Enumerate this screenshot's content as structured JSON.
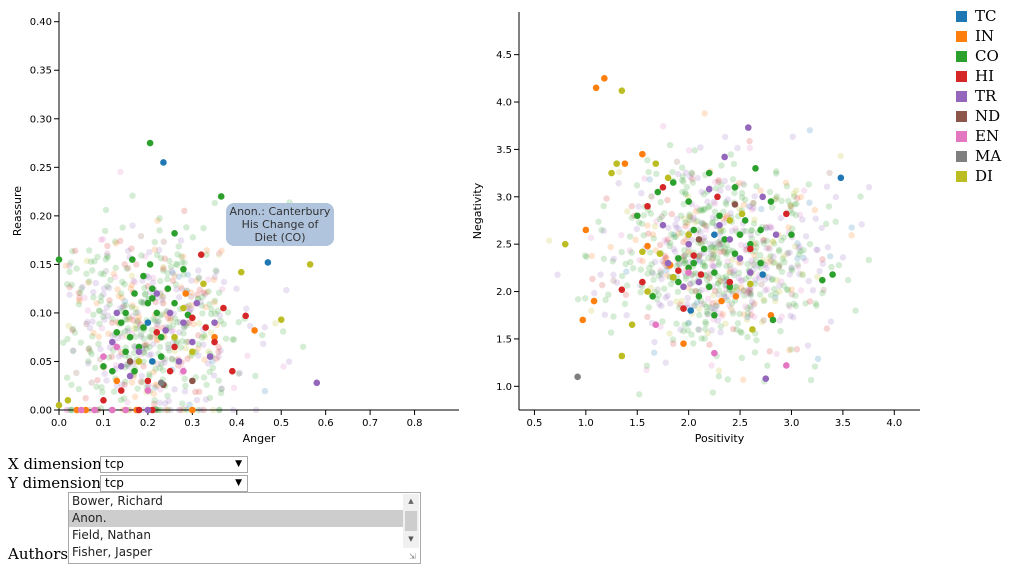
{
  "charts": {
    "left": {
      "xlabel": "Anger",
      "ylabel": "Reassure",
      "xlim": [
        0,
        0.9
      ],
      "ylim": [
        0,
        0.41
      ],
      "xticks": [
        "0.0",
        "0.1",
        "0.2",
        "0.3",
        "0.4",
        "0.5",
        "0.6",
        "0.7",
        "0.8"
      ],
      "xtick_values": [
        0,
        0.1,
        0.2,
        0.3,
        0.4,
        0.5,
        0.6,
        0.7,
        0.8
      ],
      "yticks": [
        "0.00",
        "0.05",
        "0.10",
        "0.15",
        "0.20",
        "0.25",
        "0.30",
        "0.35",
        "0.40"
      ],
      "ytick_values": [
        0,
        0.05,
        0.1,
        0.15,
        0.2,
        0.25,
        0.3,
        0.35,
        0.4
      ]
    },
    "right": {
      "xlabel": "Positivity",
      "ylabel": "Negativity",
      "xlim": [
        0.35,
        4.25
      ],
      "ylim": [
        0.75,
        4.95
      ],
      "xticks": [
        "0.5",
        "1.0",
        "1.5",
        "2.0",
        "2.5",
        "3.0",
        "3.5",
        "4.0"
      ],
      "xtick_values": [
        0.5,
        1,
        1.5,
        2,
        2.5,
        3,
        3.5,
        4
      ],
      "yticks": [
        "1.0",
        "1.5",
        "2.0",
        "2.5",
        "3.0",
        "3.5",
        "4.0",
        "4.5"
      ],
      "ytick_values": [
        1,
        1.5,
        2,
        2.5,
        3,
        3.5,
        4,
        4.5
      ]
    }
  },
  "chart_data": [
    {
      "type": "scatter",
      "xlabel": "Anger",
      "ylabel": "Reassure",
      "xlim": [
        0,
        0.9
      ],
      "ylim": [
        0,
        0.41
      ],
      "series": [
        {
          "name": "TC",
          "values": [
            [
              0.235,
              0.255
            ],
            [
              0.47,
              0.152
            ],
            [
              0.21,
              0.05
            ],
            [
              0.2,
              0.09
            ]
          ]
        },
        {
          "name": "IN",
          "values": [
            [
              0.44,
              0.082
            ],
            [
              0.35,
              0.075
            ],
            [
              0.13,
              0.03
            ],
            [
              0.175,
              0.0
            ],
            [
              0.04,
              0.0
            ],
            [
              0.3,
              0.0
            ],
            [
              0.285,
              0.12
            ],
            [
              0.06,
              0.0
            ]
          ]
        },
        {
          "name": "CO",
          "values": [
            [
              0.205,
              0.275
            ],
            [
              0.365,
              0.22
            ],
            [
              0.26,
              0.182
            ],
            [
              0.0,
              0.155
            ],
            [
              0.165,
              0.155
            ],
            [
              0.19,
              0.138
            ],
            [
              0.21,
              0.115
            ],
            [
              0.2,
              0.11
            ],
            [
              0.17,
              0.12
            ],
            [
              0.14,
              0.09
            ],
            [
              0.22,
              0.1
            ],
            [
              0.23,
              0.075
            ],
            [
              0.18,
              0.065
            ],
            [
              0.15,
              0.06
            ],
            [
              0.1,
              0.045
            ],
            [
              0.12,
              0.04
            ],
            [
              0.26,
              0.11
            ],
            [
              0.19,
              0.085
            ],
            [
              0.16,
              0.075
            ],
            [
              0.245,
              0.125
            ],
            [
              0.205,
              0.15
            ],
            [
              0.29,
              0.098
            ],
            [
              0.17,
              0.04
            ],
            [
              0.13,
              0.08
            ],
            [
              0.23,
              0.055
            ],
            [
              0.28,
              0.145
            ],
            [
              0.15,
              0.1
            ],
            [
              0.21,
              0.125
            ]
          ]
        },
        {
          "name": "HI",
          "values": [
            [
              0.32,
              0.16
            ],
            [
              0.37,
              0.105
            ],
            [
              0.42,
              0.097
            ],
            [
              0.33,
              0.085
            ],
            [
              0.35,
              0.07
            ],
            [
              0.26,
              0.065
            ],
            [
              0.2,
              0.03
            ],
            [
              0.14,
              0.02
            ],
            [
              0.39,
              0.04
            ],
            [
              0.18,
              0.0
            ],
            [
              0.21,
              0.0
            ],
            [
              0.22,
              0.08
            ],
            [
              0.3,
              0.095
            ],
            [
              0.25,
              0.04
            ],
            [
              0.1,
              0.01
            ]
          ]
        },
        {
          "name": "TR",
          "values": [
            [
              0.22,
              0.12
            ],
            [
              0.28,
              0.09
            ],
            [
              0.3,
              0.07
            ],
            [
              0.18,
              0.06
            ],
            [
              0.12,
              0.07
            ],
            [
              0.25,
              0.1
            ],
            [
              0.16,
              0.035
            ],
            [
              0.34,
              0.055
            ],
            [
              0.58,
              0.028
            ],
            [
              0.27,
              0.05
            ],
            [
              0.31,
              0.11
            ],
            [
              0.2,
              0.0
            ],
            [
              0.13,
              0.1
            ],
            [
              0.24,
              0.082
            ],
            [
              0.35,
              0.09
            ],
            [
              0.14,
              0.045
            ]
          ]
        },
        {
          "name": "ND",
          "values": [
            [
              0.235,
              0.026
            ],
            [
              0.16,
              0.05
            ],
            [
              0.3,
              0.03
            ]
          ]
        },
        {
          "name": "EN",
          "values": [
            [
              0.1,
              0.055
            ],
            [
              0.2,
              0.02
            ],
            [
              0.15,
              0.0
            ],
            [
              0.12,
              0.0
            ],
            [
              0.08,
              0.0
            ],
            [
              0.28,
              0.04
            ],
            [
              0.05,
              0.0
            ],
            [
              0.13,
              0.065
            ]
          ]
        },
        {
          "name": "MA",
          "values": [
            [
              0.23,
              0.028
            ]
          ]
        },
        {
          "name": "DI",
          "values": [
            [
              0.41,
              0.142
            ],
            [
              0.565,
              0.15
            ],
            [
              0.325,
              0.13
            ],
            [
              0.5,
              0.093
            ],
            [
              0.28,
              0.105
            ],
            [
              0.0,
              0.005
            ],
            [
              0.3,
              0.06
            ],
            [
              0.18,
              0.05
            ],
            [
              0.02,
              0.01
            ],
            [
              0.26,
              0.075
            ]
          ]
        }
      ]
    },
    {
      "type": "scatter",
      "xlabel": "Positivity",
      "ylabel": "Negativity",
      "xlim": [
        0.35,
        4.25
      ],
      "ylim": [
        0.75,
        4.95
      ],
      "series": [
        {
          "name": "TC",
          "values": [
            [
              3.48,
              3.2
            ],
            [
              2.72,
              2.18
            ],
            [
              2.02,
              1.8
            ],
            [
              2.25,
              2.6
            ]
          ]
        },
        {
          "name": "IN",
          "values": [
            [
              1.18,
              4.25
            ],
            [
              1.1,
              4.15
            ],
            [
              1.55,
              3.45
            ],
            [
              1.38,
              3.35
            ],
            [
              1.0,
              2.65
            ],
            [
              0.97,
              1.7
            ],
            [
              1.08,
              1.9
            ],
            [
              2.46,
              1.95
            ],
            [
              1.95,
              1.45
            ],
            [
              1.82,
              2.28
            ],
            [
              2.8,
              1.75
            ],
            [
              1.6,
              2.48
            ],
            [
              2.32,
              1.9
            ]
          ]
        },
        {
          "name": "CO",
          "values": [
            [
              2.2,
              3.25
            ],
            [
              2.65,
              3.3
            ],
            [
              1.85,
              3.15
            ],
            [
              2.45,
              3.1
            ],
            [
              2.0,
              2.95
            ],
            [
              2.8,
              2.95
            ],
            [
              1.7,
              3.05
            ],
            [
              2.3,
              2.8
            ],
            [
              2.55,
              2.75
            ],
            [
              2.05,
              2.65
            ],
            [
              2.35,
              2.55
            ],
            [
              2.6,
              2.5
            ],
            [
              2.15,
              2.45
            ],
            [
              2.45,
              2.4
            ],
            [
              2.05,
              2.3
            ],
            [
              2.7,
              2.3
            ],
            [
              2.25,
              2.2
            ],
            [
              3.3,
              2.12
            ],
            [
              2.4,
              2.05
            ],
            [
              1.9,
              2.1
            ],
            [
              2.1,
              1.95
            ],
            [
              2.82,
              1.7
            ],
            [
              2.25,
              1.75
            ],
            [
              3.0,
              2.6
            ],
            [
              1.5,
              2.8
            ],
            [
              2.0,
              2.25
            ],
            [
              2.5,
              2.6
            ],
            [
              3.4,
              2.18
            ],
            [
              1.65,
              1.95
            ],
            [
              2.2,
              2.05
            ],
            [
              1.9,
              2.35
            ],
            [
              2.7,
              2.65
            ]
          ]
        },
        {
          "name": "HI",
          "values": [
            [
              1.75,
              3.1
            ],
            [
              2.28,
              3.0
            ],
            [
              2.95,
              2.82
            ],
            [
              1.6,
              2.9
            ],
            [
              2.05,
              2.38
            ],
            [
              2.12,
              2.18
            ],
            [
              1.9,
              2.22
            ],
            [
              1.55,
              2.1
            ],
            [
              1.35,
              2.02
            ],
            [
              1.95,
              1.82
            ],
            [
              2.4,
              2.1
            ],
            [
              2.6,
              2.45
            ]
          ]
        },
        {
          "name": "TR",
          "values": [
            [
              2.58,
              3.73
            ],
            [
              2.35,
              3.42
            ],
            [
              2.2,
              3.08
            ],
            [
              2.72,
              3.0
            ],
            [
              1.75,
              2.7
            ],
            [
              2.4,
              2.55
            ],
            [
              2.0,
              2.5
            ],
            [
              2.85,
              2.6
            ],
            [
              2.3,
              2.7
            ],
            [
              1.8,
              2.3
            ],
            [
              2.6,
              2.2
            ],
            [
              2.1,
              2.1
            ],
            [
              2.75,
              1.08
            ],
            [
              1.95,
              2.05
            ],
            [
              2.5,
              2.35
            ]
          ]
        },
        {
          "name": "ND",
          "values": [
            [
              2.45,
              2.92
            ],
            [
              1.85,
              2.15
            ],
            [
              2.1,
              2.55
            ]
          ]
        },
        {
          "name": "EN",
          "values": [
            [
              2.95,
              1.22
            ],
            [
              2.25,
              1.35
            ],
            [
              1.68,
              1.65
            ],
            [
              2.0,
              2.2
            ]
          ]
        },
        {
          "name": "MA",
          "values": [
            [
              0.92,
              1.1
            ]
          ]
        },
        {
          "name": "DI",
          "values": [
            [
              1.35,
              4.12
            ],
            [
              0.8,
              2.5
            ],
            [
              1.3,
              3.35
            ],
            [
              1.68,
              3.35
            ],
            [
              1.8,
              3.2
            ],
            [
              2.52,
              2.82
            ],
            [
              1.55,
              2.42
            ],
            [
              2.4,
              2.75
            ],
            [
              1.45,
              1.65
            ],
            [
              1.6,
              2.0
            ],
            [
              1.72,
              2.4
            ],
            [
              1.85,
              2.15
            ],
            [
              2.0,
              2.6
            ],
            [
              2.6,
              2.08
            ],
            [
              1.35,
              1.32
            ],
            [
              1.25,
              3.25
            ],
            [
              2.62,
              1.6
            ]
          ]
        }
      ]
    }
  ],
  "legend": [
    {
      "name": "TC",
      "color": "#1f77b4"
    },
    {
      "name": "IN",
      "color": "#ff7f0e"
    },
    {
      "name": "CO",
      "color": "#2ca02c"
    },
    {
      "name": "HI",
      "color": "#d62728"
    },
    {
      "name": "TR",
      "color": "#9467bd"
    },
    {
      "name": "ND",
      "color": "#8c564b"
    },
    {
      "name": "EN",
      "color": "#e377c2"
    },
    {
      "name": "MA",
      "color": "#7f7f7f"
    },
    {
      "name": "DI",
      "color": "#bcbd22"
    }
  ],
  "tooltip": {
    "line1": "Anon.: Canterbury",
    "line2": "His Change of",
    "line3": "Diet (CO)"
  },
  "controls": {
    "x_label": "X dimension:",
    "x_value": "tcp",
    "y_label": "Y dimension:",
    "y_value": "tcp",
    "authors_label": "Authors:",
    "authors": [
      "Bower, Richard",
      "Anon.",
      "Field, Nathan",
      "Fisher, Jasper"
    ],
    "selected_author": "Anon."
  }
}
